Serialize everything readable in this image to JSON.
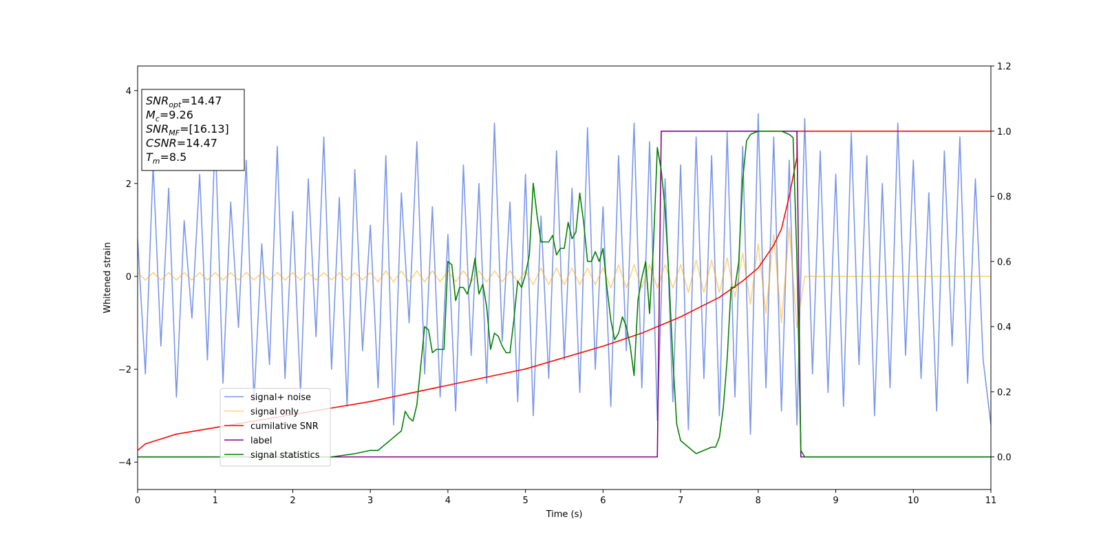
{
  "chart_data": {
    "type": "line",
    "xlabel": "Time (s)",
    "ylabel": "Whitened strain",
    "xlim": [
      0,
      11
    ],
    "xticks": [
      0,
      1,
      2,
      3,
      4,
      5,
      6,
      7,
      8,
      9,
      10,
      11
    ],
    "ylim": [
      -4.59,
      4.53
    ],
    "yticks": [
      {
        "value": -4,
        "label": "−4"
      },
      {
        "value": -2,
        "label": "−2"
      },
      0,
      2,
      4
    ],
    "y2lim": [
      -0.1,
      1.2
    ],
    "y2ticks": [
      {
        "value": 0,
        "label": "0.0"
      },
      {
        "value": 0.2,
        "label": "0.2"
      },
      {
        "value": 0.4,
        "label": "0.4"
      },
      {
        "value": 0.6,
        "label": "0.6"
      },
      {
        "value": 0.8,
        "label": "0.8"
      },
      {
        "value": 1,
        "label": "1.0"
      },
      {
        "value": 1.2,
        "label": "1.2"
      }
    ],
    "legend": "lower left",
    "annotation": [
      {
        "text": "SNR",
        "sub": "opt",
        "rest": "=14.47"
      },
      {
        "text": "M",
        "sub": "c",
        "rest": "=9.26"
      },
      {
        "text": "SNR",
        "sub": "MF",
        "rest": "=[16.13]"
      },
      {
        "text": "CSNR",
        "rest": "=14.47"
      },
      {
        "text": "T",
        "sub": "m",
        "rest": "=8.5"
      }
    ],
    "x": [
      0,
      0.1,
      0.2,
      0.3,
      0.4,
      0.5,
      0.6,
      0.7,
      0.8,
      0.9,
      1,
      1.1,
      1.2,
      1.3,
      1.4,
      1.5,
      1.6,
      1.7,
      1.8,
      1.9,
      2,
      2.1,
      2.2,
      2.3,
      2.4,
      2.5,
      2.6,
      2.7,
      2.8,
      2.9,
      3,
      3.1,
      3.2,
      3.3,
      3.4,
      3.5,
      3.6,
      3.7,
      3.8,
      3.9,
      4,
      4.1,
      4.2,
      4.3,
      4.4,
      4.5,
      4.6,
      4.7,
      4.8,
      4.9,
      5,
      5.1,
      5.2,
      5.3,
      5.4,
      5.5,
      5.6,
      5.7,
      5.8,
      5.9,
      6,
      6.1,
      6.2,
      6.3,
      6.4,
      6.5,
      6.6,
      6.7,
      6.8,
      6.9,
      7,
      7.1,
      7.2,
      7.3,
      7.4,
      7.5,
      7.6,
      7.7,
      7.8,
      7.9,
      8,
      8.1,
      8.2,
      8.3,
      8.4,
      8.5,
      8.6,
      8.7,
      8.8,
      8.9,
      9,
      9.1,
      9.2,
      9.3,
      9.4,
      9.5,
      9.6,
      9.7,
      9.8,
      9.9,
      10,
      10.1,
      10.2,
      10.3,
      10.4,
      10.5,
      10.6,
      10.7,
      10.8,
      10.9,
      11
    ],
    "series": [
      {
        "name": "signal+ noise",
        "color": "#4169e1",
        "alpha": 0.7,
        "values": [
          0.8,
          -2.1,
          2.4,
          -1.5,
          1.9,
          -2.6,
          1.2,
          -0.9,
          2.2,
          -1.8,
          3.1,
          -2.3,
          1.6,
          -1.1,
          2.5,
          -2.7,
          0.7,
          -1.9,
          2.8,
          -2.2,
          1.4,
          -2.5,
          2.1,
          -1.3,
          3.0,
          -2.0,
          1.7,
          -2.8,
          2.3,
          -1.6,
          1.1,
          -2.4,
          2.6,
          -3.2,
          1.8,
          -1.0,
          2.9,
          -2.1,
          1.5,
          -2.6,
          0.9,
          -2.9,
          2.4,
          -1.7,
          2.0,
          -2.3,
          3.3,
          -1.4,
          1.6,
          -2.7,
          2.2,
          -3.0,
          1.3,
          -2.2,
          2.7,
          -1.8,
          1.9,
          -2.5,
          3.2,
          -2.0,
          1.5,
          -2.8,
          2.6,
          -1.6,
          3.3,
          -2.4,
          2.9,
          -3.1,
          2.1,
          -2.7,
          2.4,
          -3.3,
          3.0,
          -2.2,
          2.6,
          -3.0,
          3.1,
          -2.6,
          2.8,
          -3.4,
          3.5,
          -2.4,
          3.0,
          -2.9,
          2.5,
          -3.2,
          3.4,
          -2.1,
          2.7,
          -2.5,
          2.2,
          -2.8,
          3.1,
          -1.9,
          2.6,
          -3.0,
          2.0,
          -2.4,
          3.3,
          -1.7,
          2.5,
          -2.2,
          1.8,
          -2.9,
          2.7,
          -1.5,
          3.0,
          -2.3,
          2.1,
          -1.8,
          -3.2
        ]
      },
      {
        "name": "signal only",
        "color": "#ffa500",
        "alpha": 0.5,
        "values": [
          0.08,
          -0.08,
          0.08,
          -0.08,
          0.08,
          -0.08,
          0.08,
          -0.08,
          0.08,
          -0.08,
          0.08,
          -0.08,
          0.08,
          -0.08,
          0.08,
          -0.08,
          0.08,
          -0.08,
          0.08,
          -0.08,
          0.08,
          -0.08,
          0.08,
          -0.08,
          0.08,
          -0.08,
          0.08,
          -0.08,
          0.08,
          -0.08,
          0.08,
          -0.12,
          0.12,
          -0.12,
          0.12,
          -0.12,
          0.12,
          -0.12,
          0.12,
          -0.12,
          0.12,
          -0.12,
          0.12,
          -0.12,
          0.12,
          -0.12,
          0.12,
          -0.12,
          0.12,
          -0.12,
          0.12,
          -0.18,
          0.18,
          -0.18,
          0.18,
          -0.18,
          0.18,
          -0.18,
          0.18,
          -0.18,
          0.18,
          -0.25,
          0.25,
          -0.25,
          0.25,
          -0.25,
          0.25,
          -0.25,
          0.25,
          -0.25,
          0.25,
          -0.35,
          0.35,
          -0.35,
          0.35,
          -0.35,
          0.4,
          -0.45,
          0.5,
          -0.6,
          0.7,
          -0.8,
          0.9,
          -1.0,
          1.05,
          -1.1,
          0,
          0,
          0,
          0,
          0,
          0,
          0,
          0,
          0,
          0,
          0,
          0,
          0,
          0,
          0,
          0,
          0,
          0,
          0,
          0,
          0,
          0,
          0,
          0,
          0
        ]
      },
      {
        "name": "cumilative SNR",
        "color": "#ff0000",
        "axis": "y2",
        "x": [
          0,
          0.1,
          0.5,
          1,
          2,
          3,
          4,
          5,
          6,
          6.5,
          7,
          7.5,
          7.8,
          8,
          8.2,
          8.3,
          8.4,
          8.5,
          8.5,
          11
        ],
        "values": [
          0.02,
          0.04,
          0.07,
          0.09,
          0.13,
          0.17,
          0.22,
          0.27,
          0.34,
          0.38,
          0.43,
          0.49,
          0.54,
          0.58,
          0.65,
          0.7,
          0.8,
          0.92,
          1.0,
          1.0
        ]
      },
      {
        "name": "label",
        "color": "#800080",
        "axis": "y2",
        "x": [
          0,
          6.7,
          6.75,
          8.5,
          8.55,
          11
        ],
        "values": [
          0,
          0,
          1,
          1,
          0,
          0
        ]
      },
      {
        "name": "signal statistics",
        "color": "#008000",
        "axis": "y2",
        "x": [
          0,
          1,
          2,
          2.5,
          2.8,
          3,
          3.1,
          3.2,
          3.3,
          3.4,
          3.45,
          3.5,
          3.55,
          3.6,
          3.65,
          3.7,
          3.75,
          3.8,
          3.85,
          3.9,
          3.95,
          4,
          4.05,
          4.1,
          4.15,
          4.2,
          4.25,
          4.3,
          4.35,
          4.4,
          4.45,
          4.5,
          4.55,
          4.6,
          4.65,
          4.7,
          4.75,
          4.8,
          4.85,
          4.9,
          4.95,
          5,
          5.05,
          5.1,
          5.15,
          5.2,
          5.25,
          5.3,
          5.35,
          5.4,
          5.45,
          5.5,
          5.55,
          5.6,
          5.65,
          5.7,
          5.75,
          5.8,
          5.85,
          5.9,
          5.95,
          6,
          6.05,
          6.1,
          6.15,
          6.2,
          6.25,
          6.3,
          6.35,
          6.4,
          6.45,
          6.5,
          6.55,
          6.6,
          6.65,
          6.7,
          6.75,
          6.8,
          6.85,
          6.9,
          6.95,
          7,
          7.05,
          7.1,
          7.2,
          7.3,
          7.4,
          7.45,
          7.5,
          7.55,
          7.6,
          7.65,
          7.7,
          7.75,
          7.8,
          7.85,
          7.9,
          8,
          8.1,
          8.2,
          8.3,
          8.4,
          8.45,
          8.5,
          8.55,
          8.6,
          8.7,
          11
        ],
        "values": [
          0,
          0,
          0,
          0,
          0.01,
          0.02,
          0.02,
          0.04,
          0.06,
          0.08,
          0.14,
          0.12,
          0.11,
          0.16,
          0.28,
          0.4,
          0.39,
          0.32,
          0.33,
          0.33,
          0.33,
          0.6,
          0.59,
          0.48,
          0.52,
          0.52,
          0.5,
          0.54,
          0.61,
          0.5,
          0.53,
          0.46,
          0.33,
          0.38,
          0.37,
          0.34,
          0.32,
          0.32,
          0.42,
          0.54,
          0.52,
          0.56,
          0.62,
          0.84,
          0.74,
          0.66,
          0.66,
          0.66,
          0.68,
          0.62,
          0.64,
          0.64,
          0.72,
          0.67,
          0.69,
          0.81,
          0.72,
          0.6,
          0.6,
          0.63,
          0.6,
          0.64,
          0.52,
          0.42,
          0.36,
          0.38,
          0.43,
          0.4,
          0.34,
          0.25,
          0.48,
          0.55,
          0.6,
          0.44,
          0.65,
          0.95,
          0.88,
          0.76,
          0.55,
          0.3,
          0.1,
          0.05,
          0.04,
          0.03,
          0.01,
          0.02,
          0.03,
          0.03,
          0.06,
          0.15,
          0.3,
          0.52,
          0.52,
          0.6,
          0.85,
          0.97,
          0.99,
          1,
          1,
          1,
          1,
          0.99,
          0.98,
          0.6,
          0.02,
          0,
          0,
          0
        ]
      }
    ]
  }
}
